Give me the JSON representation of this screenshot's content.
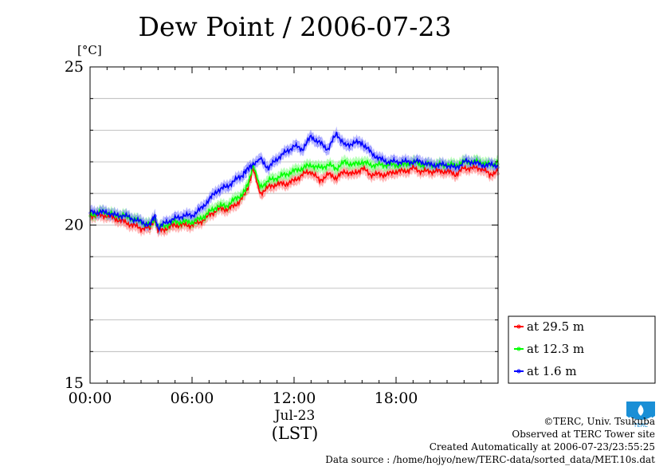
{
  "chart_data": {
    "type": "line",
    "title": "Dew Point / 2006-07-23",
    "unit_label": "[°C]",
    "ylim": [
      15,
      25
    ],
    "y_ticks": [
      "15",
      "20",
      "25"
    ],
    "xlim": [
      "00:00",
      "24:00"
    ],
    "x_ticks": [
      "00:00",
      "06:00",
      "12:00",
      "18:00"
    ],
    "x_sublabel": "Jul-23",
    "xlabel": "(LST)",
    "grid": true,
    "legend_position": "bottom-right",
    "series": [
      {
        "name": "at 29.5 m",
        "color": "#ff0000",
        "x_hours": [
          0,
          0.5,
          1,
          1.5,
          2,
          2.5,
          3,
          3.5,
          3.8,
          4,
          4.5,
          5,
          5.5,
          6,
          6.5,
          7,
          7.5,
          8,
          8.5,
          9,
          9.3,
          9.6,
          10,
          10.5,
          11,
          11.5,
          12,
          12.5,
          13,
          13.5,
          14,
          14.5,
          15,
          15.5,
          16,
          16.5,
          17,
          17.5,
          18,
          18.5,
          19,
          19.5,
          20,
          20.5,
          21,
          21.5,
          22,
          22.5,
          23,
          23.5,
          24
        ],
        "values": [
          20.3,
          20.3,
          20.3,
          20.2,
          20.1,
          20.0,
          19.9,
          19.9,
          20.2,
          19.8,
          19.9,
          20.0,
          20.0,
          20.0,
          20.1,
          20.3,
          20.5,
          20.5,
          20.6,
          20.9,
          21.2,
          21.8,
          21.0,
          21.2,
          21.3,
          21.3,
          21.4,
          21.6,
          21.7,
          21.4,
          21.6,
          21.5,
          21.7,
          21.6,
          21.8,
          21.6,
          21.6,
          21.6,
          21.7,
          21.7,
          21.8,
          21.7,
          21.7,
          21.7,
          21.7,
          21.6,
          21.8,
          21.8,
          21.8,
          21.6,
          21.7
        ]
      },
      {
        "name": "at 12.3 m",
        "color": "#00ff00",
        "x_hours": [
          0,
          0.5,
          1,
          1.5,
          2,
          2.5,
          3,
          3.5,
          3.8,
          4,
          4.5,
          5,
          5.5,
          6,
          6.5,
          7,
          7.5,
          8,
          8.5,
          9,
          9.3,
          9.6,
          10,
          10.5,
          11,
          11.5,
          12,
          12.5,
          13,
          13.5,
          14,
          14.5,
          15,
          15.5,
          16,
          16.5,
          17,
          17.5,
          18,
          18.5,
          19,
          19.5,
          20,
          20.5,
          21,
          21.5,
          22,
          22.5,
          23,
          23.5,
          24
        ],
        "values": [
          20.3,
          20.4,
          20.4,
          20.3,
          20.3,
          20.2,
          20.1,
          20.0,
          20.2,
          19.9,
          20.0,
          20.1,
          20.1,
          20.1,
          20.2,
          20.4,
          20.6,
          20.6,
          20.8,
          21.0,
          21.3,
          21.9,
          21.2,
          21.4,
          21.5,
          21.6,
          21.7,
          21.8,
          21.9,
          21.8,
          21.9,
          21.8,
          22.0,
          21.9,
          22.0,
          21.9,
          21.9,
          21.9,
          21.9,
          21.9,
          22.0,
          21.9,
          21.9,
          21.9,
          21.9,
          21.9,
          22.0,
          22.0,
          22.0,
          21.9,
          22.0
        ]
      },
      {
        "name": "at 1.6 m",
        "color": "#0000ff",
        "x_hours": [
          0,
          0.5,
          1,
          1.5,
          2,
          2.5,
          3,
          3.5,
          3.8,
          4,
          4.5,
          5,
          5.5,
          6,
          6.5,
          7,
          7.5,
          8,
          8.5,
          9,
          9.3,
          9.6,
          10,
          10.5,
          11,
          11.5,
          12,
          12.5,
          13,
          13.5,
          14,
          14.5,
          15,
          15.5,
          16,
          16.5,
          17,
          17.5,
          18,
          18.5,
          19,
          19.5,
          20,
          20.5,
          21,
          21.5,
          22,
          22.5,
          23,
          23.5,
          24
        ],
        "values": [
          20.4,
          20.4,
          20.4,
          20.3,
          20.3,
          20.2,
          20.1,
          20.0,
          20.3,
          19.9,
          20.1,
          20.2,
          20.3,
          20.3,
          20.5,
          20.8,
          21.1,
          21.2,
          21.4,
          21.6,
          21.8,
          21.9,
          22.1,
          21.8,
          22.1,
          22.3,
          22.5,
          22.4,
          22.8,
          22.6,
          22.4,
          22.9,
          22.5,
          22.6,
          22.6,
          22.3,
          22.1,
          22.0,
          22.0,
          22.0,
          22.0,
          22.0,
          21.9,
          21.9,
          21.9,
          21.8,
          22.0,
          22.0,
          21.9,
          21.9,
          21.9
        ]
      }
    ]
  },
  "footer": {
    "copyright": "©TERC, Univ. Tsukuba",
    "observed": "Observed at TERC Tower site",
    "created": "Created Automatically at 2006-07-23/23:55:25",
    "source": "Data source : /home/hojyo/new/TERC-data/sorted_data/MET.10s.dat"
  },
  "logo": {
    "icon": "terc-logo-icon",
    "text": "TERC",
    "color": "#1a8fd6"
  }
}
